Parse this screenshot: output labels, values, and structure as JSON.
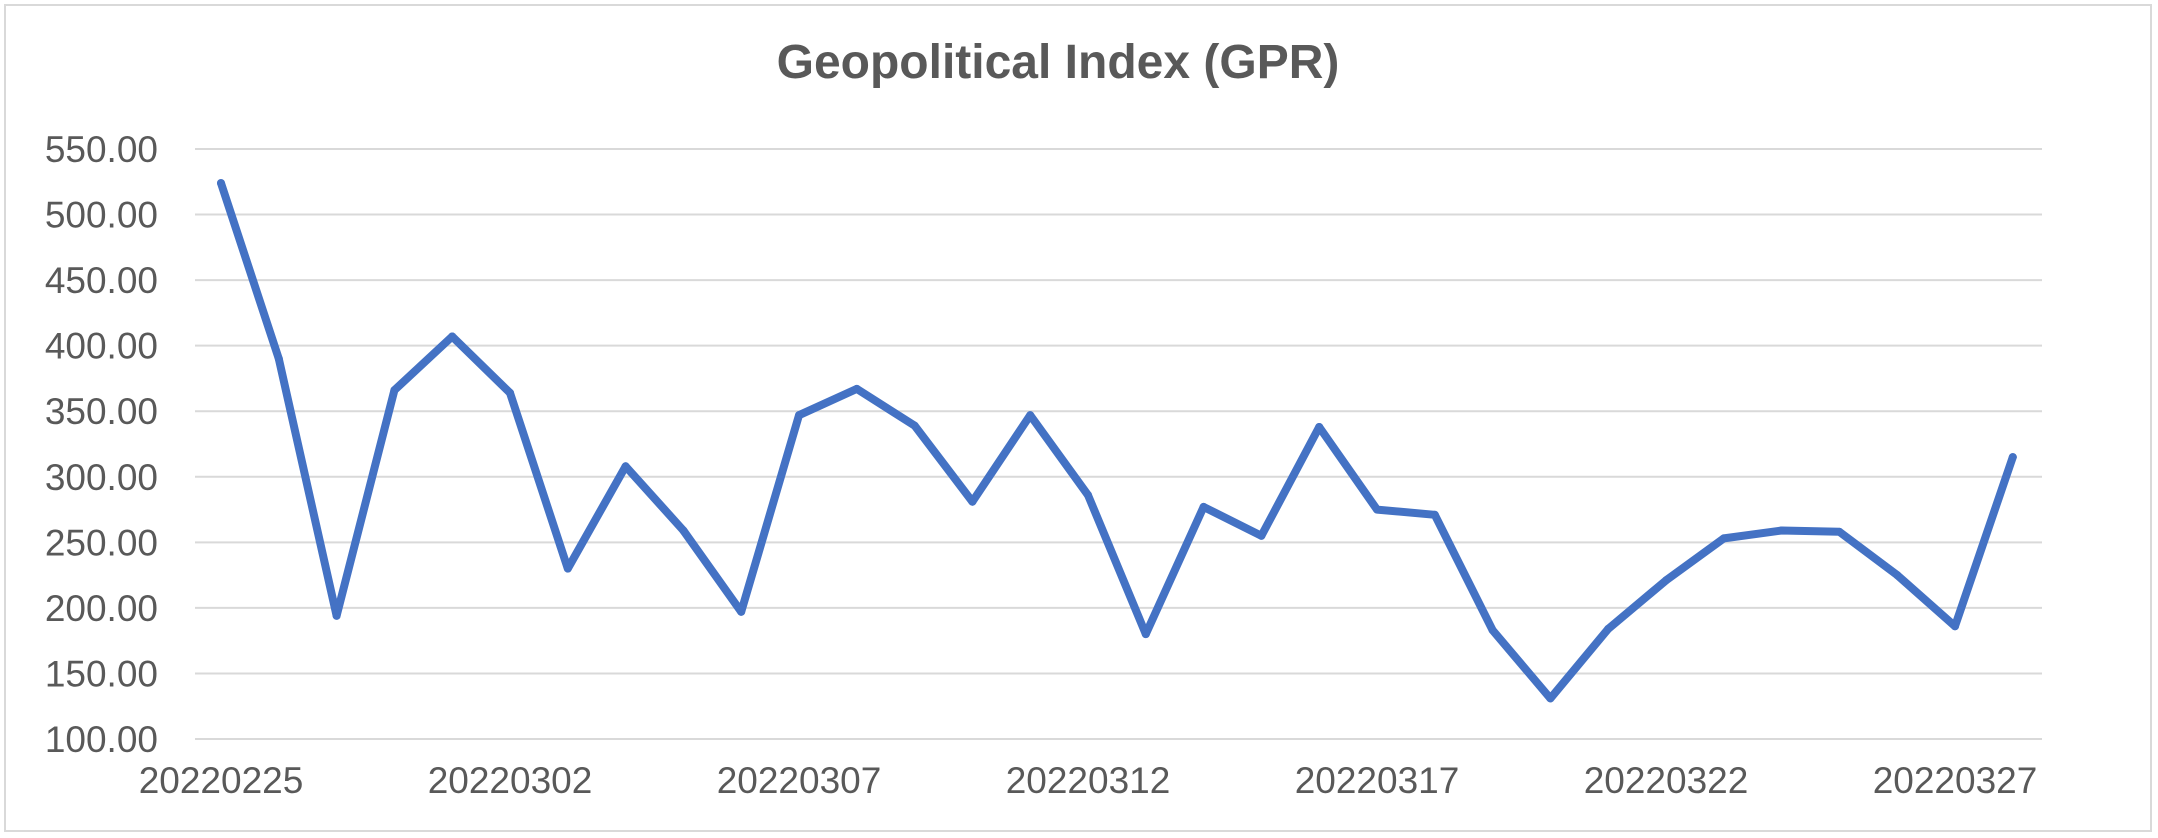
{
  "chart_data": {
    "type": "line",
    "title": "Geopolitical Index (GPR)",
    "xlabel": "",
    "ylabel": "",
    "ylim": [
      100,
      550
    ],
    "yticks": [
      100,
      150,
      200,
      250,
      300,
      350,
      400,
      450,
      500,
      550
    ],
    "ytick_labels": [
      "100.00",
      "150.00",
      "200.00",
      "250.00",
      "300.00",
      "350.00",
      "400.00",
      "450.00",
      "500.00",
      "550.00"
    ],
    "grid": true,
    "legend": "none",
    "x_tick_labels": [
      "20220225",
      "20220302",
      "20220307",
      "20220312",
      "20220317",
      "20220322",
      "20220327"
    ],
    "x_tick_every": 5,
    "categories": [
      "20220225",
      "20220226",
      "20220227",
      "20220228",
      "20220301",
      "20220302",
      "20220303",
      "20220304",
      "20220305",
      "20220306",
      "20220307",
      "20220308",
      "20220309",
      "20220310",
      "20220311",
      "20220312",
      "20220313",
      "20220314",
      "20220315",
      "20220316",
      "20220317",
      "20220318",
      "20220319",
      "20220320",
      "20220321",
      "20220322",
      "20220323",
      "20220324",
      "20220325",
      "20220326",
      "20220327",
      "20220328"
    ],
    "series": [
      {
        "color": "#4472c4",
        "values": [
          524,
          390,
          194,
          366,
          407,
          364,
          230,
          308,
          259,
          197,
          347,
          367,
          339,
          281,
          347,
          286,
          180,
          277,
          255,
          338,
          275,
          271,
          183,
          131,
          184,
          221,
          253,
          259,
          258,
          225,
          186,
          315
        ]
      }
    ]
  }
}
